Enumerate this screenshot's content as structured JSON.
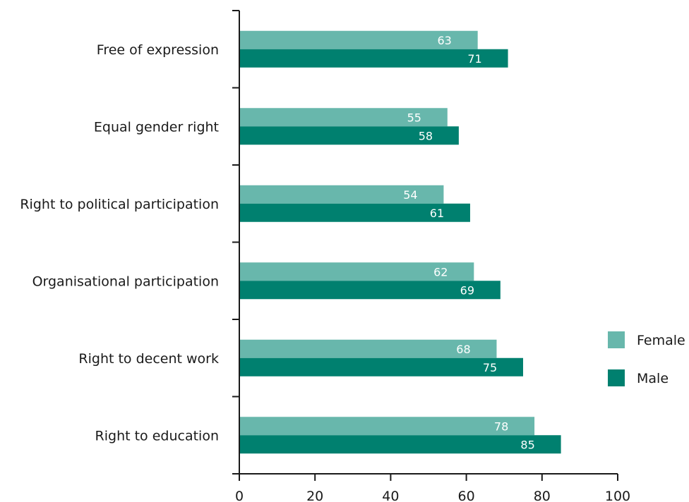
{
  "chart_data": {
    "type": "bar",
    "orientation": "horizontal",
    "categories": [
      "Free of expression",
      "Equal gender right",
      "Right to political participation",
      "Organisational participation",
      "Right to decent work",
      "Right to education"
    ],
    "series": [
      {
        "name": "Female",
        "color": "#68b7ac",
        "values": [
          63,
          55,
          54,
          62,
          68,
          78
        ]
      },
      {
        "name": "Male",
        "color": "#00806f",
        "values": [
          71,
          58,
          61,
          69,
          75,
          85
        ]
      }
    ],
    "xlim": [
      0,
      100
    ],
    "xticks": [
      "0",
      "20",
      "40",
      "60",
      "80",
      "100"
    ],
    "title": "",
    "xlabel": "",
    "ylabel": "",
    "grid": false,
    "legend_position": "right"
  }
}
